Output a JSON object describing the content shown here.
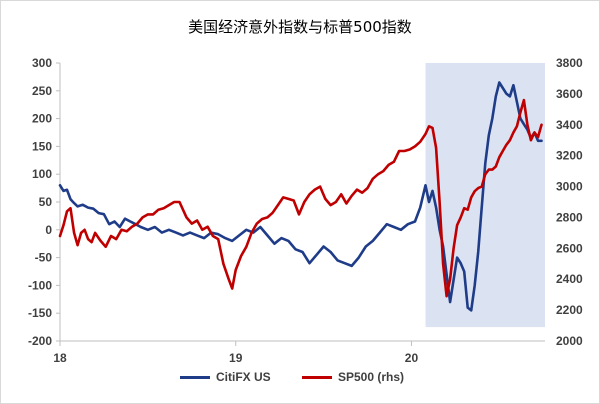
{
  "chart_data": {
    "type": "line",
    "title": "美国经济意外指数与标普500指数",
    "x_ticks": [
      "18",
      "19",
      "20"
    ],
    "x_range": [
      2018.0,
      2020.76
    ],
    "y_left": {
      "ticks": [
        -200,
        -150,
        -100,
        -50,
        0,
        50,
        100,
        150,
        200,
        250,
        300
      ],
      "range": [
        -200,
        300
      ]
    },
    "y_right": {
      "ticks": [
        2000,
        2200,
        2400,
        2600,
        2800,
        3000,
        3200,
        3400,
        3600,
        3800
      ],
      "range": [
        2000,
        3800
      ]
    },
    "shaded_region": {
      "x_start": 2020.08,
      "x_end": 2020.76,
      "y_top": 300,
      "y_bottom": -175,
      "color": "#dbe3f3"
    },
    "series": [
      {
        "name": "CitiFX US",
        "axis": "left",
        "color": "#1f3c88",
        "x": [
          2018.0,
          2018.02,
          2018.04,
          2018.06,
          2018.08,
          2018.1,
          2018.13,
          2018.16,
          2018.19,
          2018.22,
          2018.25,
          2018.28,
          2018.31,
          2018.34,
          2018.37,
          2018.4,
          2018.43,
          2018.46,
          2018.5,
          2018.54,
          2018.58,
          2018.62,
          2018.66,
          2018.7,
          2018.74,
          2018.78,
          2018.82,
          2018.86,
          2018.9,
          2018.94,
          2018.98,
          2019.02,
          2019.06,
          2019.1,
          2019.14,
          2019.18,
          2019.22,
          2019.26,
          2019.3,
          2019.34,
          2019.38,
          2019.42,
          2019.46,
          2019.5,
          2019.54,
          2019.58,
          2019.62,
          2019.66,
          2019.7,
          2019.74,
          2019.78,
          2019.82,
          2019.86,
          2019.9,
          2019.94,
          2019.98,
          2020.02,
          2020.05,
          2020.08,
          2020.1,
          2020.12,
          2020.14,
          2020.16,
          2020.18,
          2020.2,
          2020.22,
          2020.24,
          2020.26,
          2020.28,
          2020.3,
          2020.32,
          2020.34,
          2020.36,
          2020.38,
          2020.4,
          2020.42,
          2020.44,
          2020.46,
          2020.48,
          2020.5,
          2020.52,
          2020.54,
          2020.56,
          2020.58,
          2020.6,
          2020.62,
          2020.64,
          2020.66,
          2020.68,
          2020.7,
          2020.72,
          2020.74
        ],
        "values": [
          80,
          70,
          72,
          55,
          48,
          42,
          45,
          40,
          38,
          30,
          28,
          10,
          15,
          5,
          20,
          15,
          10,
          5,
          0,
          5,
          -5,
          0,
          -5,
          -10,
          -5,
          -10,
          -15,
          -5,
          -8,
          -15,
          -20,
          -10,
          0,
          -5,
          5,
          -10,
          -25,
          -15,
          -20,
          -35,
          -40,
          -60,
          -45,
          -30,
          -40,
          -55,
          -60,
          -65,
          -50,
          -30,
          -20,
          -5,
          10,
          5,
          0,
          10,
          15,
          40,
          80,
          50,
          70,
          40,
          0,
          -30,
          -80,
          -130,
          -90,
          -50,
          -60,
          -75,
          -140,
          -145,
          -100,
          -40,
          40,
          120,
          170,
          200,
          240,
          265,
          255,
          245,
          240,
          260,
          230,
          200,
          190,
          180,
          165,
          175,
          160,
          160
        ]
      },
      {
        "name": "SP500 (rhs)",
        "axis": "right",
        "color": "#c00000",
        "x": [
          2018.0,
          2018.02,
          2018.04,
          2018.06,
          2018.08,
          2018.1,
          2018.12,
          2018.14,
          2018.16,
          2018.18,
          2018.2,
          2018.23,
          2018.26,
          2018.29,
          2018.32,
          2018.35,
          2018.38,
          2018.41,
          2018.44,
          2018.47,
          2018.5,
          2018.53,
          2018.56,
          2018.59,
          2018.62,
          2018.65,
          2018.68,
          2018.72,
          2018.75,
          2018.78,
          2018.81,
          2018.84,
          2018.87,
          2018.9,
          2018.93,
          2018.96,
          2018.98,
          2019.0,
          2019.03,
          2019.06,
          2019.09,
          2019.12,
          2019.15,
          2019.18,
          2019.21,
          2019.24,
          2019.27,
          2019.3,
          2019.33,
          2019.36,
          2019.39,
          2019.42,
          2019.45,
          2019.48,
          2019.51,
          2019.54,
          2019.57,
          2019.6,
          2019.63,
          2019.66,
          2019.69,
          2019.72,
          2019.75,
          2019.78,
          2019.81,
          2019.84,
          2019.87,
          2019.9,
          2019.93,
          2019.96,
          2019.99,
          2020.02,
          2020.05,
          2020.08,
          2020.1,
          2020.12,
          2020.14,
          2020.16,
          2020.18,
          2020.2,
          2020.22,
          2020.24,
          2020.26,
          2020.28,
          2020.3,
          2020.32,
          2020.34,
          2020.36,
          2020.38,
          2020.4,
          2020.42,
          2020.44,
          2020.46,
          2020.48,
          2020.5,
          2020.52,
          2020.54,
          2020.56,
          2020.58,
          2020.6,
          2020.62,
          2020.64,
          2020.66,
          2020.68,
          2020.7,
          2020.72,
          2020.74
        ],
        "values": [
          2680,
          2750,
          2840,
          2860,
          2700,
          2620,
          2700,
          2720,
          2660,
          2640,
          2700,
          2650,
          2610,
          2680,
          2660,
          2720,
          2710,
          2740,
          2760,
          2800,
          2820,
          2820,
          2850,
          2860,
          2880,
          2900,
          2900,
          2800,
          2760,
          2780,
          2720,
          2740,
          2680,
          2660,
          2500,
          2400,
          2340,
          2460,
          2550,
          2610,
          2700,
          2760,
          2790,
          2800,
          2830,
          2880,
          2930,
          2920,
          2910,
          2820,
          2900,
          2950,
          2980,
          3000,
          2920,
          2880,
          2900,
          2950,
          2890,
          2940,
          2980,
          2960,
          2990,
          3050,
          3080,
          3100,
          3140,
          3160,
          3230,
          3230,
          3240,
          3260,
          3290,
          3340,
          3390,
          3380,
          3250,
          2900,
          2500,
          2290,
          2400,
          2600,
          2750,
          2800,
          2860,
          2850,
          2930,
          2970,
          2990,
          3000,
          3080,
          3110,
          3110,
          3130,
          3190,
          3230,
          3270,
          3300,
          3350,
          3390,
          3480,
          3560,
          3400,
          3300,
          3350,
          3320,
          3400
        ]
      }
    ],
    "legend": {
      "placement": "bottom",
      "entries": [
        "CitiFX US",
        "SP500 (rhs)"
      ]
    }
  }
}
